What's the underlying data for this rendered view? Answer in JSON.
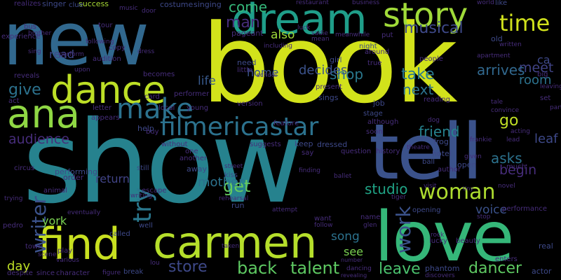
{
  "words": [
    {
      "text": "book"
    },
    {
      "text": "show"
    },
    {
      "text": "new"
    },
    {
      "text": "tell"
    },
    {
      "text": "love"
    },
    {
      "text": "dream"
    },
    {
      "text": "carmen"
    },
    {
      "text": "find"
    },
    {
      "text": "ana"
    },
    {
      "text": "dance"
    },
    {
      "text": "story"
    },
    {
      "text": "filmericastar"
    },
    {
      "text": "woman"
    },
    {
      "text": "time"
    },
    {
      "text": "make"
    },
    {
      "text": "talent"
    },
    {
      "text": "back"
    },
    {
      "text": "store"
    },
    {
      "text": "leave"
    },
    {
      "text": "dancer"
    },
    {
      "text": "writer"
    },
    {
      "text": "musical"
    },
    {
      "text": "try"
    },
    {
      "text": "get"
    },
    {
      "text": "give"
    },
    {
      "text": "audience"
    },
    {
      "text": "meet"
    },
    {
      "text": "friend"
    },
    {
      "text": "work"
    },
    {
      "text": "studio"
    },
    {
      "text": "man"
    },
    {
      "text": "come"
    },
    {
      "text": "shop"
    },
    {
      "text": "take"
    },
    {
      "text": "next"
    },
    {
      "text": "go"
    },
    {
      "text": "begin"
    },
    {
      "text": "decides"
    },
    {
      "text": "arrives"
    },
    {
      "text": "asks"
    },
    {
      "text": "room"
    },
    {
      "text": "leaf"
    },
    {
      "text": "mother"
    },
    {
      "text": "day"
    },
    {
      "text": "song"
    },
    {
      "text": "see"
    },
    {
      "text": "voice"
    },
    {
      "text": "york"
    },
    {
      "text": "return"
    },
    {
      "text": "life"
    },
    {
      "text": "home"
    },
    {
      "text": "also"
    },
    {
      "text": "read"
    },
    {
      "text": "ca"
    },
    {
      "text": "singer"
    },
    {
      "text": "success"
    },
    {
      "text": "costume"
    },
    {
      "text": "singing"
    },
    {
      "text": "restaurant"
    },
    {
      "text": "business"
    },
    {
      "text": "world"
    },
    {
      "text": "like"
    },
    {
      "text": "realizes"
    },
    {
      "text": "clue"
    },
    {
      "text": "music"
    },
    {
      "text": "door"
    },
    {
      "text": "tour"
    },
    {
      "text": "copy"
    },
    {
      "text": "audition"
    },
    {
      "text": "becomes"
    },
    {
      "text": "pageant"
    },
    {
      "text": "girl"
    },
    {
      "text": "night"
    },
    {
      "text": "sings"
    },
    {
      "text": "job"
    },
    {
      "text": "stage"
    },
    {
      "text": "keep"
    },
    {
      "text": "dressed"
    },
    {
      "text": "hotel"
    },
    {
      "text": "ball"
    },
    {
      "text": "open"
    },
    {
      "text": "theatre"
    },
    {
      "text": "frog"
    },
    {
      "text": "frankie"
    },
    {
      "text": "experience"
    },
    {
      "text": "reveals"
    },
    {
      "text": "act"
    },
    {
      "text": "circus"
    },
    {
      "text": "performing"
    },
    {
      "text": "order"
    },
    {
      "text": "animal"
    },
    {
      "text": "pedro"
    },
    {
      "text": "town"
    },
    {
      "text": "play"
    },
    {
      "text": "various"
    },
    {
      "text": "despite"
    },
    {
      "text": "since"
    },
    {
      "text": "character"
    },
    {
      "text": "figure"
    },
    {
      "text": "break"
    },
    {
      "text": "called"
    },
    {
      "text": "well"
    },
    {
      "text": "help"
    },
    {
      "text": "still"
    },
    {
      "text": "away"
    },
    {
      "text": "kiss"
    },
    {
      "text": "run"
    },
    {
      "text": "rehearsal"
    },
    {
      "text": "street"
    },
    {
      "text": "escape"
    },
    {
      "text": "want"
    },
    {
      "text": "follow"
    },
    {
      "text": "name"
    },
    {
      "text": "glen"
    },
    {
      "text": "dancing"
    },
    {
      "text": "number"
    },
    {
      "text": "revealing"
    },
    {
      "text": "phantom"
    },
    {
      "text": "discovers"
    },
    {
      "text": "enters"
    },
    {
      "text": "actor"
    },
    {
      "text": "real"
    },
    {
      "text": "performance"
    },
    {
      "text": "opening"
    },
    {
      "text": "beauty"
    },
    {
      "text": "lucky"
    },
    {
      "text": "stop"
    },
    {
      "text": "tiger"
    },
    {
      "text": "novel"
    },
    {
      "text": "author"
    },
    {
      "text": "visit"
    },
    {
      "text": "given"
    },
    {
      "text": "much"
    },
    {
      "text": "lead"
    },
    {
      "text": "acting"
    },
    {
      "text": "convince"
    },
    {
      "text": "tale"
    },
    {
      "text": "set"
    },
    {
      "text": "part"
    },
    {
      "text": "big"
    },
    {
      "text": "reading"
    },
    {
      "text": "people"
    },
    {
      "text": "local"
    },
    {
      "text": "young"
    },
    {
      "text": "performer"
    },
    {
      "text": "letter"
    },
    {
      "text": "appears"
    },
    {
      "text": "without"
    },
    {
      "text": "one"
    },
    {
      "text": "another"
    },
    {
      "text": "card"
    },
    {
      "text": "suggests"
    },
    {
      "text": "feature"
    },
    {
      "text": "version"
    },
    {
      "text": "school"
    },
    {
      "text": "need"
    },
    {
      "text": "little"
    },
    {
      "text": "question"
    },
    {
      "text": "say"
    },
    {
      "text": "soon"
    },
    {
      "text": "although"
    },
    {
      "text": "history"
    },
    {
      "text": "present"
    },
    {
      "text": "true"
    },
    {
      "text": "around"
    },
    {
      "text": "mean"
    },
    {
      "text": "meanwhile"
    },
    {
      "text": "put"
    },
    {
      "text": "luck"
    },
    {
      "text": "sadie"
    },
    {
      "text": "bus"
    },
    {
      "text": "brother"
    },
    {
      "text": "sing"
    },
    {
      "text": "upon"
    },
    {
      "text": "perform"
    },
    {
      "text": "dress"
    },
    {
      "text": "following"
    },
    {
      "text": "writing"
    },
    {
      "text": "trying"
    },
    {
      "text": "scene"
    },
    {
      "text": "eventually"
    },
    {
      "text": "lou"
    },
    {
      "text": "attempt"
    },
    {
      "text": "finding"
    },
    {
      "text": "dog"
    },
    {
      "text": "ballet"
    },
    {
      "text": "leaving"
    },
    {
      "text": "apartment"
    },
    {
      "text": "written"
    },
    {
      "text": "old"
    },
    {
      "text": "including"
    },
    {
      "text": "taken"
    },
    {
      "text": "rock"
    },
    {
      "text": "tiny"
    },
    {
      "text": "buy"
    }
  ]
}
